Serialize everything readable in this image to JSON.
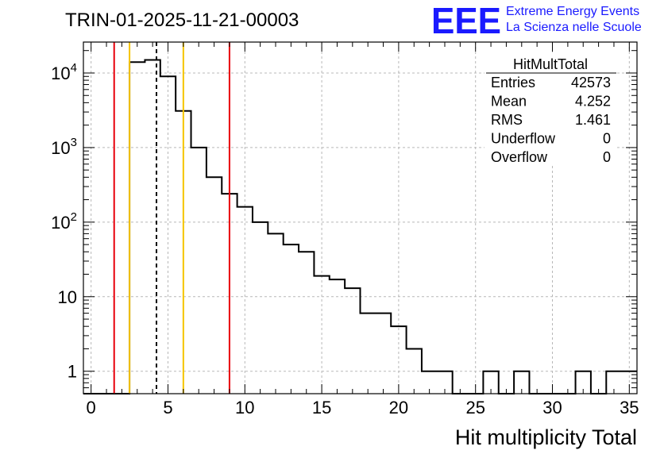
{
  "chart_data": {
    "type": "bar",
    "title": "TRIN-01-2025-11-21-00003",
    "xlabel": "Hit multiplicity Total",
    "ylabel": "",
    "xlim": [
      -0.5,
      35.5
    ],
    "ylim": [
      0.5,
      26000
    ],
    "yscale": "log",
    "grid": true,
    "x_ticks": [
      0,
      5,
      10,
      15,
      20,
      25,
      30,
      35
    ],
    "x_tick_labels": [
      "0",
      "5",
      "10",
      "15",
      "20",
      "25",
      "30",
      "35"
    ],
    "y_ticks": [
      {
        "value": 1,
        "base": "1",
        "exp": ""
      },
      {
        "value": 10,
        "base": "10",
        "exp": ""
      },
      {
        "value": 100,
        "base": "10",
        "exp": "2"
      },
      {
        "value": 1000,
        "base": "10",
        "exp": "3"
      },
      {
        "value": 10000,
        "base": "10",
        "exp": "4"
      }
    ],
    "bin_edges_start": -0.5,
    "bin_width": 1,
    "values": [
      0,
      0,
      0,
      14000,
      15000,
      9000,
      3100,
      1000,
      400,
      240,
      160,
      100,
      70,
      50,
      40,
      19,
      17,
      13,
      6,
      6,
      4,
      2,
      1,
      1,
      0,
      0,
      1,
      0,
      1,
      0,
      0,
      0,
      1,
      0,
      1,
      1
    ],
    "vertical_lines": [
      {
        "x": 1.5,
        "color": "#e8000b",
        "style": "solid"
      },
      {
        "x": 2.5,
        "color": "#f5c400",
        "style": "solid"
      },
      {
        "x": 4.252,
        "color": "#000000",
        "style": "dashed"
      },
      {
        "x": 6.0,
        "color": "#f5c400",
        "style": "solid"
      },
      {
        "x": 9.0,
        "color": "#e8000b",
        "style": "solid"
      }
    ],
    "stats": {
      "name": "HitMultTotal",
      "rows": [
        {
          "label": "Entries",
          "value": "42573"
        },
        {
          "label": "Mean",
          "value": "4.252"
        },
        {
          "label": "RMS",
          "value": "1.461"
        },
        {
          "label": "Underflow",
          "value": "0"
        },
        {
          "label": "Overflow",
          "value": "0"
        }
      ]
    }
  },
  "logo": {
    "text": "EEE",
    "line1": "Extreme Energy Events",
    "line2": "La Scienza nelle Scuole",
    "color": "#1a1aff"
  }
}
